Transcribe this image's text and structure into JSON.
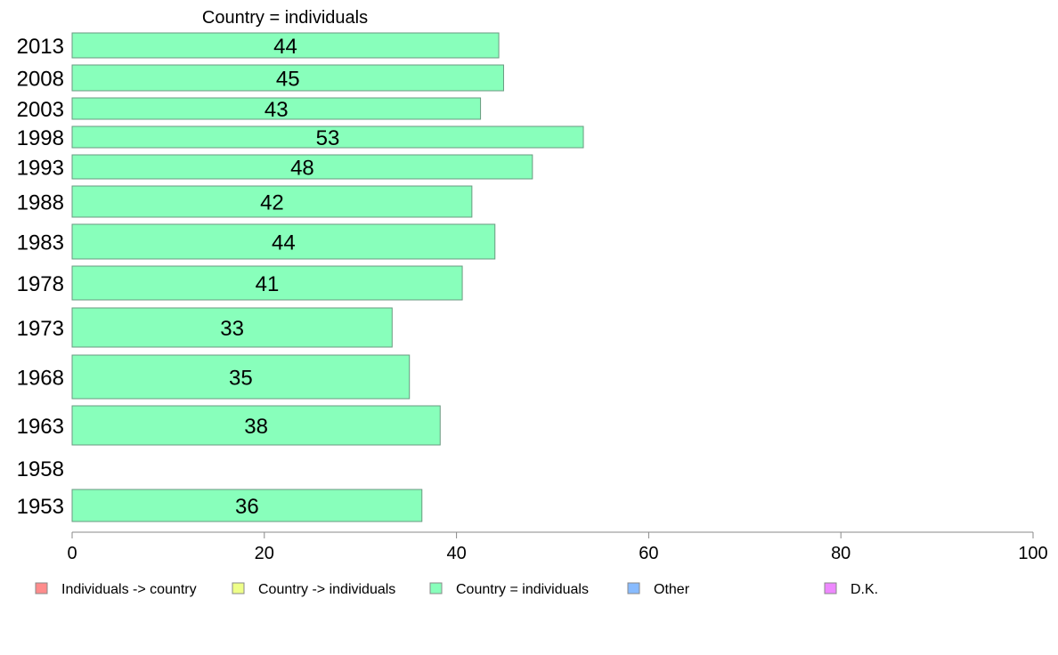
{
  "chart_data": {
    "type": "bar",
    "orientation": "horizontal",
    "title": "Country = individuals",
    "categories": [
      "2013",
      "2008",
      "2003",
      "1998",
      "1993",
      "1988",
      "1983",
      "1978",
      "1973",
      "1968",
      "1963",
      "1958",
      "1953"
    ],
    "values": [
      44,
      45,
      43,
      53,
      48,
      42,
      44,
      41,
      33,
      35,
      38,
      null,
      36
    ],
    "bar_values": [
      44.4,
      44.9,
      42.5,
      53.2,
      47.9,
      41.6,
      44.0,
      40.6,
      33.3,
      35.1,
      38.3,
      null,
      36.4
    ],
    "xlim": [
      0,
      100
    ],
    "xticks": [
      "0",
      "20",
      "40",
      "60",
      "80",
      "100"
    ],
    "bar_color": "#88ffbb",
    "legend": {
      "position": "bottom",
      "items": [
        {
          "label": "Individuals -> country",
          "color": "#ff8c8c"
        },
        {
          "label": "Country -> individuals",
          "color": "#eeff88"
        },
        {
          "label": "Country = individuals",
          "color": "#88ffbb"
        },
        {
          "label": "Other",
          "color": "#88bbff"
        },
        {
          "label": "D.K.",
          "color": "#ee88ff"
        }
      ]
    }
  }
}
